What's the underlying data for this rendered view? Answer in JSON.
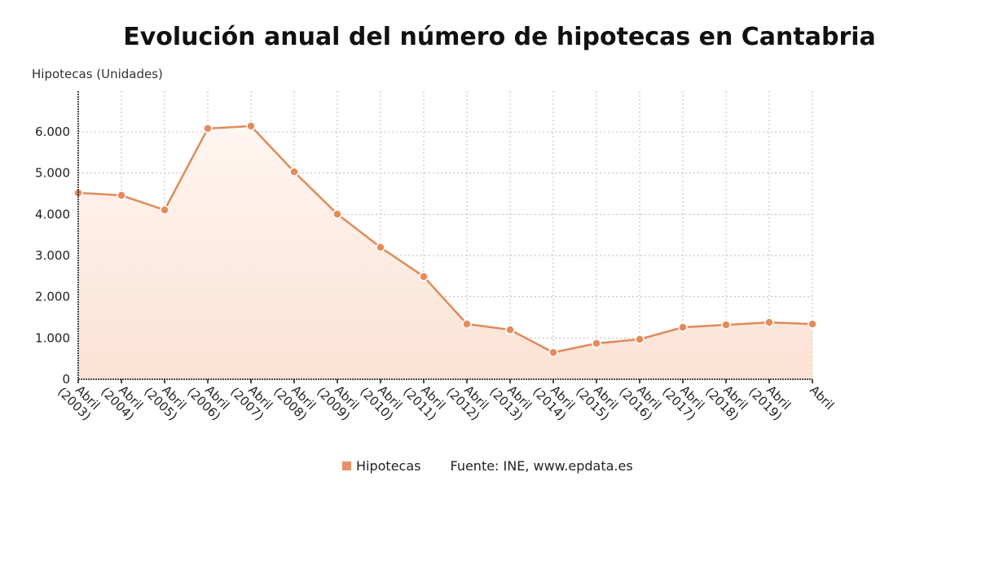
{
  "header": {
    "title": "Evolución anual del número de hipotecas en Cantabria"
  },
  "legend": {
    "series_label": "Hipotecas",
    "source": "Fuente: INE, www.epdata.es"
  },
  "colors": {
    "line": "#e08a5a",
    "fill": "#fbe3d6",
    "grid": "#bbbbbb"
  },
  "chart_data": {
    "type": "area",
    "title": "Evolución anual del número de hipotecas en Cantabria",
    "xlabel": "",
    "ylabel": "Hipotecas (Unidades)",
    "ylim": [
      0,
      7000
    ],
    "yticks": [
      "0",
      "1.000",
      "2.000",
      "3.000",
      "4.000",
      "5.000",
      "6.000"
    ],
    "categories": [
      "Abril (2003)",
      "Abril (2004)",
      "Abril (2005)",
      "Abril (2006)",
      "Abril (2007)",
      "Abril (2008)",
      "Abril (2009)",
      "Abril (2010)",
      "Abril (2011)",
      "Abril (2012)",
      "Abril (2013)",
      "Abril (2014)",
      "Abril (2015)",
      "Abril (2016)",
      "Abril (2017)",
      "Abril (2018)",
      "Abril (2019)",
      "Abril"
    ],
    "series": [
      {
        "name": "Hipotecas",
        "values": [
          4520,
          4460,
          4105,
          6080,
          6140,
          5030,
          4005,
          3200,
          2490,
          1340,
          1200,
          650,
          870,
          970,
          1260,
          1320,
          1380,
          1340
        ]
      }
    ],
    "grid": true,
    "legend_position": "bottom"
  }
}
